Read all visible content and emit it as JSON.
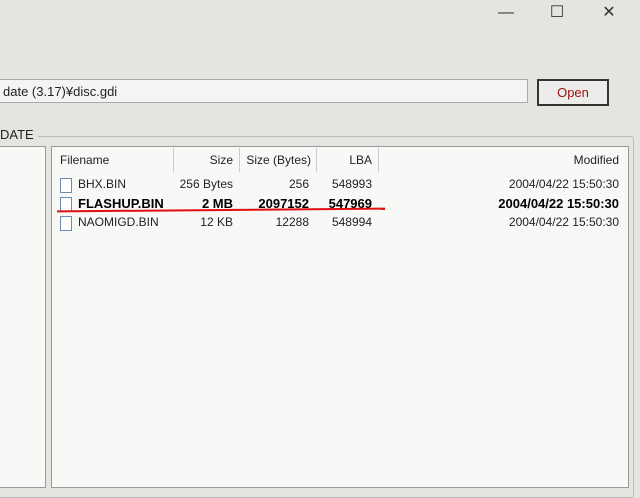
{
  "window": {
    "minimize": "—",
    "maximize": "☐",
    "close": "✕"
  },
  "path": {
    "value": "date (3.17)¥disc.gdi"
  },
  "open_label": "Open",
  "group_label": "DATE",
  "list": {
    "columns": [
      "Filename",
      "Size",
      "Size (Bytes)",
      "LBA",
      "Modified"
    ],
    "rows": [
      {
        "name": "BHX.BIN",
        "size": "256 Bytes",
        "bytes": "256",
        "lba": "548993",
        "modified": "2004/04/22 15:50:30",
        "selected": false
      },
      {
        "name": "FLASHUP.BIN",
        "size": "2 MB",
        "bytes": "2097152",
        "lba": "547969",
        "modified": "2004/04/22 15:50:30",
        "selected": true
      },
      {
        "name": "NAOMIGD.BIN",
        "size": "12 KB",
        "bytes": "12288",
        "lba": "548994",
        "modified": "2004/04/22 15:50:30",
        "selected": false
      }
    ]
  },
  "annotation_color": "#e01010"
}
